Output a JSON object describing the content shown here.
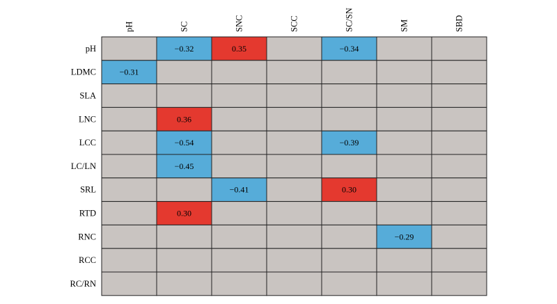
{
  "chart_data": {
    "type": "heatmap",
    "title": "",
    "columns": [
      "pH",
      "SC",
      "SNC",
      "SCC",
      "SC/SN",
      "SM",
      "SBD"
    ],
    "rows": [
      "pH",
      "LDMC",
      "SLA",
      "LNC",
      "LCC",
      "LC/LN",
      "SRL",
      "RTD",
      "RNC",
      "RCC",
      "RC/RN"
    ],
    "values": [
      [
        null,
        -0.32,
        0.35,
        null,
        -0.34,
        null,
        null
      ],
      [
        -0.31,
        null,
        null,
        null,
        null,
        null,
        null
      ],
      [
        null,
        null,
        null,
        null,
        null,
        null,
        null
      ],
      [
        null,
        0.36,
        null,
        null,
        null,
        null,
        null
      ],
      [
        null,
        -0.54,
        null,
        null,
        -0.39,
        null,
        null
      ],
      [
        null,
        -0.45,
        null,
        null,
        null,
        null,
        null
      ],
      [
        null,
        null,
        -0.41,
        null,
        0.3,
        null,
        null
      ],
      [
        null,
        0.3,
        null,
        null,
        null,
        null,
        null
      ],
      [
        null,
        null,
        null,
        null,
        null,
        -0.29,
        null
      ],
      [
        null,
        null,
        null,
        null,
        null,
        null,
        null
      ],
      [
        null,
        null,
        null,
        null,
        null,
        null,
        null
      ]
    ],
    "value_labels": [
      [
        null,
        "−0.32",
        "0.35",
        null,
        "−0.34",
        null,
        null
      ],
      [
        "−0.31",
        null,
        null,
        null,
        null,
        null,
        null
      ],
      [
        null,
        null,
        null,
        null,
        null,
        null,
        null
      ],
      [
        null,
        "0.36",
        null,
        null,
        null,
        null,
        null
      ],
      [
        null,
        "−0.54",
        null,
        null,
        "−0.39",
        null,
        null
      ],
      [
        null,
        "−0.45",
        null,
        null,
        null,
        null,
        null
      ],
      [
        null,
        null,
        "−0.41",
        null,
        "0.30",
        null,
        null
      ],
      [
        null,
        "0.30",
        null,
        null,
        null,
        null,
        null
      ],
      [
        null,
        null,
        null,
        null,
        null,
        "−0.29",
        null
      ],
      [
        null,
        null,
        null,
        null,
        null,
        null,
        null
      ],
      [
        null,
        null,
        null,
        null,
        null,
        null,
        null
      ]
    ],
    "colors": {
      "positive": "#e4392f",
      "negative": "#56acd9",
      "empty": "#c9c4c1",
      "border": "#222222"
    },
    "grid": true
  }
}
